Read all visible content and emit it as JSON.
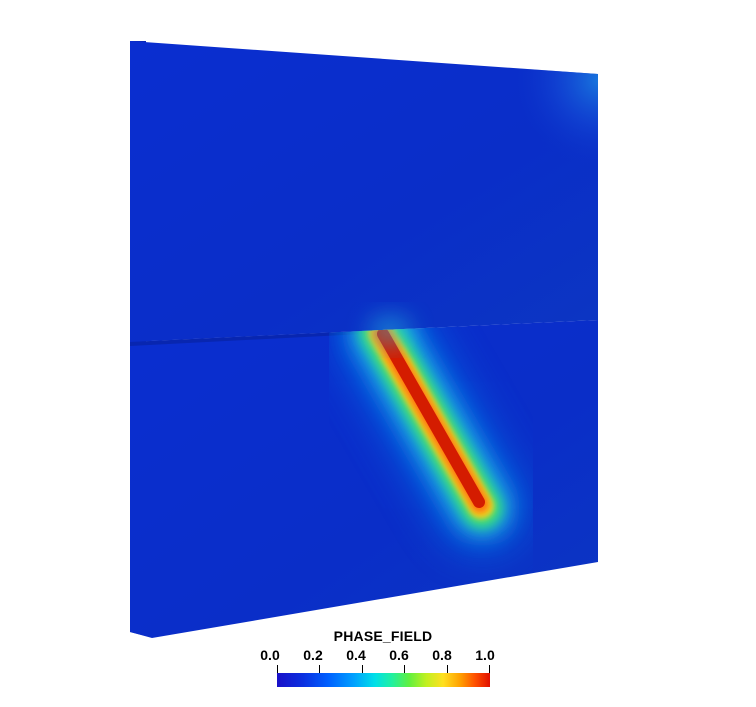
{
  "legend": {
    "title": "PHASE_FIELD",
    "ticks": [
      "0.0",
      "0.2",
      "0.4",
      "0.6",
      "0.8",
      "1.0"
    ],
    "range": [
      0.0,
      1.0
    ],
    "colormap": [
      "#1a10c8",
      "#0060ff",
      "#00e0e8",
      "#60f040",
      "#ffe020",
      "#ff5000",
      "#e01000"
    ]
  },
  "field": {
    "background_value": 0.0,
    "crack_value": 1.0,
    "low_color": "#0a2dc9",
    "high_color": "#d41c00"
  }
}
